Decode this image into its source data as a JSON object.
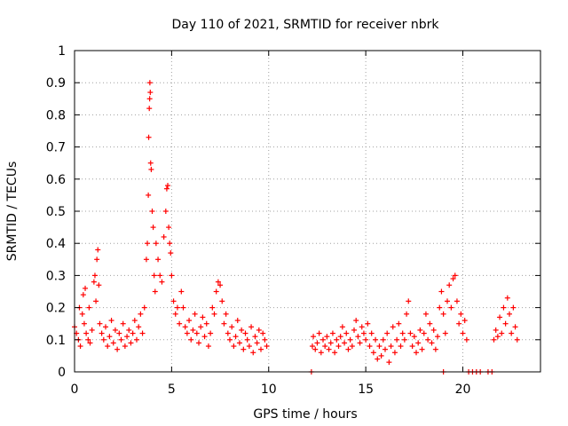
{
  "chart_data": {
    "type": "scatter",
    "title": "Day 110 of 2021, SRMTID for receiver nbrk",
    "xlabel": "GPS time / hours",
    "ylabel": "SRMTID / TECUs",
    "xlim": [
      0,
      24
    ],
    "ylim": [
      0,
      1
    ],
    "x_ticks": [
      0,
      5,
      10,
      15,
      20
    ],
    "y_ticks": [
      0,
      0.1,
      0.2,
      0.3,
      0.4,
      0.5,
      0.6,
      0.7,
      0.8,
      0.9,
      1
    ],
    "x_tick_labels": [
      "0",
      "5",
      "10",
      "15",
      "20"
    ],
    "y_tick_labels": [
      "0",
      "0.1",
      "0.2",
      "0.3",
      "0.4",
      "0.5",
      "0.6",
      "0.7",
      "0.8",
      "0.9",
      "1"
    ],
    "grid": true,
    "marker": "+",
    "color": "#ff0000",
    "series": [
      {
        "name": "SRMTID",
        "points": [
          [
            0.0,
            0.14
          ],
          [
            0.1,
            0.12
          ],
          [
            0.2,
            0.1
          ],
          [
            0.25,
            0.2
          ],
          [
            0.3,
            0.08
          ],
          [
            0.4,
            0.18
          ],
          [
            0.45,
            0.24
          ],
          [
            0.5,
            0.15
          ],
          [
            0.55,
            0.26
          ],
          [
            0.6,
            0.12
          ],
          [
            0.7,
            0.1
          ],
          [
            0.75,
            0.2
          ],
          [
            0.8,
            0.09
          ],
          [
            0.9,
            0.13
          ],
          [
            1.0,
            0.28
          ],
          [
            1.05,
            0.3
          ],
          [
            1.1,
            0.22
          ],
          [
            1.15,
            0.35
          ],
          [
            1.2,
            0.38
          ],
          [
            1.25,
            0.27
          ],
          [
            1.3,
            0.15
          ],
          [
            1.4,
            0.12
          ],
          [
            1.5,
            0.1
          ],
          [
            1.6,
            0.14
          ],
          [
            1.7,
            0.08
          ],
          [
            1.8,
            0.11
          ],
          [
            1.9,
            0.16
          ],
          [
            2.0,
            0.09
          ],
          [
            2.1,
            0.13
          ],
          [
            2.2,
            0.07
          ],
          [
            2.3,
            0.12
          ],
          [
            2.4,
            0.1
          ],
          [
            2.5,
            0.15
          ],
          [
            2.6,
            0.08
          ],
          [
            2.7,
            0.11
          ],
          [
            2.8,
            0.13
          ],
          [
            2.9,
            0.09
          ],
          [
            3.0,
            0.12
          ],
          [
            3.1,
            0.16
          ],
          [
            3.2,
            0.1
          ],
          [
            3.3,
            0.14
          ],
          [
            3.4,
            0.18
          ],
          [
            3.5,
            0.12
          ],
          [
            3.6,
            0.2
          ],
          [
            3.7,
            0.35
          ],
          [
            3.75,
            0.4
          ],
          [
            3.8,
            0.55
          ],
          [
            3.82,
            0.73
          ],
          [
            3.85,
            0.82
          ],
          [
            3.87,
            0.85
          ],
          [
            3.88,
            0.9
          ],
          [
            3.9,
            0.87
          ],
          [
            3.92,
            0.65
          ],
          [
            3.95,
            0.63
          ],
          [
            4.0,
            0.5
          ],
          [
            4.05,
            0.45
          ],
          [
            4.1,
            0.3
          ],
          [
            4.15,
            0.25
          ],
          [
            4.2,
            0.4
          ],
          [
            4.3,
            0.35
          ],
          [
            4.4,
            0.3
          ],
          [
            4.5,
            0.28
          ],
          [
            4.6,
            0.42
          ],
          [
            4.7,
            0.5
          ],
          [
            4.75,
            0.57
          ],
          [
            4.8,
            0.58
          ],
          [
            4.85,
            0.45
          ],
          [
            4.9,
            0.4
          ],
          [
            4.95,
            0.37
          ],
          [
            5.0,
            0.3
          ],
          [
            5.1,
            0.22
          ],
          [
            5.2,
            0.18
          ],
          [
            5.3,
            0.2
          ],
          [
            5.4,
            0.15
          ],
          [
            5.5,
            0.25
          ],
          [
            5.6,
            0.2
          ],
          [
            5.7,
            0.14
          ],
          [
            5.8,
            0.12
          ],
          [
            5.9,
            0.16
          ],
          [
            6.0,
            0.1
          ],
          [
            6.1,
            0.13
          ],
          [
            6.2,
            0.18
          ],
          [
            6.3,
            0.12
          ],
          [
            6.4,
            0.09
          ],
          [
            6.5,
            0.14
          ],
          [
            6.6,
            0.17
          ],
          [
            6.7,
            0.11
          ],
          [
            6.8,
            0.15
          ],
          [
            6.9,
            0.08
          ],
          [
            7.0,
            0.12
          ],
          [
            7.1,
            0.2
          ],
          [
            7.2,
            0.18
          ],
          [
            7.3,
            0.25
          ],
          [
            7.4,
            0.28
          ],
          [
            7.5,
            0.27
          ],
          [
            7.6,
            0.22
          ],
          [
            7.7,
            0.15
          ],
          [
            7.8,
            0.18
          ],
          [
            7.9,
            0.12
          ],
          [
            8.0,
            0.1
          ],
          [
            8.1,
            0.14
          ],
          [
            8.2,
            0.08
          ],
          [
            8.3,
            0.11
          ],
          [
            8.4,
            0.16
          ],
          [
            8.5,
            0.09
          ],
          [
            8.6,
            0.13
          ],
          [
            8.7,
            0.07
          ],
          [
            8.8,
            0.12
          ],
          [
            8.9,
            0.1
          ],
          [
            9.0,
            0.08
          ],
          [
            9.1,
            0.14
          ],
          [
            9.2,
            0.06
          ],
          [
            9.3,
            0.11
          ],
          [
            9.4,
            0.09
          ],
          [
            9.5,
            0.13
          ],
          [
            9.6,
            0.07
          ],
          [
            9.7,
            0.12
          ],
          [
            9.8,
            0.1
          ],
          [
            9.9,
            0.08
          ],
          [
            12.2,
            0.0
          ],
          [
            12.25,
            0.08
          ],
          [
            12.3,
            0.11
          ],
          [
            12.4,
            0.07
          ],
          [
            12.5,
            0.09
          ],
          [
            12.6,
            0.12
          ],
          [
            12.7,
            0.06
          ],
          [
            12.8,
            0.1
          ],
          [
            12.9,
            0.08
          ],
          [
            13.0,
            0.11
          ],
          [
            13.1,
            0.07
          ],
          [
            13.2,
            0.09
          ],
          [
            13.3,
            0.12
          ],
          [
            13.4,
            0.06
          ],
          [
            13.5,
            0.1
          ],
          [
            13.6,
            0.08
          ],
          [
            13.7,
            0.11
          ],
          [
            13.8,
            0.14
          ],
          [
            13.9,
            0.09
          ],
          [
            14.0,
            0.12
          ],
          [
            14.1,
            0.07
          ],
          [
            14.2,
            0.1
          ],
          [
            14.3,
            0.08
          ],
          [
            14.4,
            0.13
          ],
          [
            14.5,
            0.16
          ],
          [
            14.6,
            0.11
          ],
          [
            14.7,
            0.09
          ],
          [
            14.8,
            0.14
          ],
          [
            14.9,
            0.12
          ],
          [
            15.0,
            0.1
          ],
          [
            15.1,
            0.15
          ],
          [
            15.2,
            0.08
          ],
          [
            15.3,
            0.12
          ],
          [
            15.4,
            0.06
          ],
          [
            15.5,
            0.1
          ],
          [
            15.6,
            0.04
          ],
          [
            15.7,
            0.08
          ],
          [
            15.8,
            0.05
          ],
          [
            15.9,
            0.1
          ],
          [
            16.0,
            0.07
          ],
          [
            16.1,
            0.12
          ],
          [
            16.2,
            0.03
          ],
          [
            16.3,
            0.08
          ],
          [
            16.4,
            0.14
          ],
          [
            16.5,
            0.06
          ],
          [
            16.6,
            0.1
          ],
          [
            16.7,
            0.15
          ],
          [
            16.8,
            0.08
          ],
          [
            16.9,
            0.12
          ],
          [
            17.0,
            0.1
          ],
          [
            17.1,
            0.18
          ],
          [
            17.2,
            0.22
          ],
          [
            17.3,
            0.12
          ],
          [
            17.4,
            0.08
          ],
          [
            17.5,
            0.11
          ],
          [
            17.6,
            0.06
          ],
          [
            17.7,
            0.09
          ],
          [
            17.8,
            0.13
          ],
          [
            17.9,
            0.07
          ],
          [
            18.0,
            0.12
          ],
          [
            18.1,
            0.18
          ],
          [
            18.2,
            0.1
          ],
          [
            18.3,
            0.15
          ],
          [
            18.4,
            0.09
          ],
          [
            18.5,
            0.13
          ],
          [
            18.6,
            0.07
          ],
          [
            18.7,
            0.11
          ],
          [
            18.8,
            0.2
          ],
          [
            18.9,
            0.25
          ],
          [
            19.0,
            0.18
          ],
          [
            19.1,
            0.12
          ],
          [
            19.2,
            0.22
          ],
          [
            19.3,
            0.27
          ],
          [
            19.4,
            0.2
          ],
          [
            19.5,
            0.29
          ],
          [
            19.6,
            0.3
          ],
          [
            19.7,
            0.22
          ],
          [
            19.8,
            0.15
          ],
          [
            19.9,
            0.18
          ],
          [
            20.0,
            0.12
          ],
          [
            20.1,
            0.16
          ],
          [
            20.2,
            0.1
          ],
          [
            19.0,
            0.0
          ],
          [
            20.3,
            0.0
          ],
          [
            20.5,
            0.0
          ],
          [
            20.7,
            0.0
          ],
          [
            20.9,
            0.0
          ],
          [
            21.3,
            0.0
          ],
          [
            21.5,
            0.0
          ],
          [
            21.6,
            0.1
          ],
          [
            21.7,
            0.13
          ],
          [
            21.8,
            0.11
          ],
          [
            21.9,
            0.17
          ],
          [
            22.0,
            0.12
          ],
          [
            22.1,
            0.2
          ],
          [
            22.2,
            0.15
          ],
          [
            22.3,
            0.23
          ],
          [
            22.4,
            0.18
          ],
          [
            22.5,
            0.12
          ],
          [
            22.6,
            0.2
          ],
          [
            22.7,
            0.14
          ],
          [
            22.8,
            0.1
          ]
        ]
      }
    ]
  }
}
